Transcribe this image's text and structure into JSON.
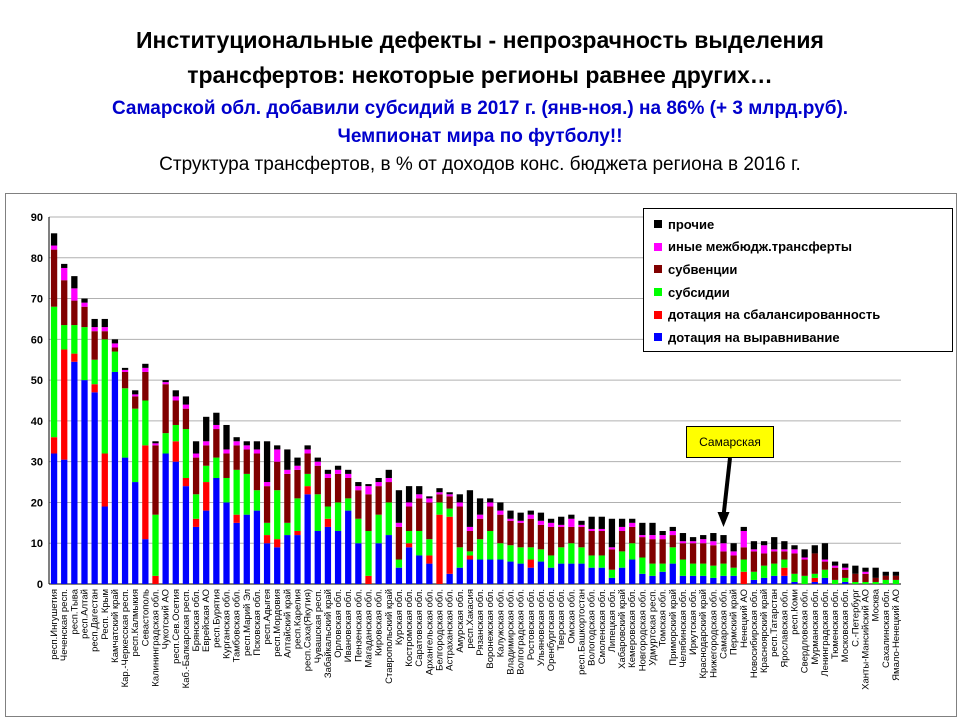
{
  "header": {
    "line1": "Институциональные дефекты - непрозрачность выделения",
    "line2": "трансфертов: некоторые регионы равнее других…",
    "line3": "Самарской обл. добавили субсидий в 2017 г. (янв-ноя.) на 86% (+ 3 млрд.руб).",
    "line4": "Чемпионат мира по футболу!!",
    "line5": "Структура трансфертов, в % от доходов конс. бюджета региона в 2016 г."
  },
  "callout": {
    "label": "Самарская"
  },
  "colors": {
    "прочие": "#000000",
    "иные межбюдж.трансферты": "#ff00ff",
    "субвенции": "#800000",
    "субсидии": "#00ff00",
    "дотация на сбалансированность": "#ff0000",
    "дотация на выравнивание": "#0000ff"
  },
  "chart_data": {
    "type": "bar",
    "stacked": true,
    "ylim": [
      0,
      90
    ],
    "yticks": [
      0,
      10,
      20,
      30,
      40,
      50,
      60,
      70,
      80,
      90
    ],
    "grid": true,
    "legend_position": "top-right",
    "legend": [
      "прочие",
      "иные межбюдж.трансферты",
      "субвенции",
      "субсидии",
      "дотация на сбалансированность",
      "дотация на выравнивание"
    ],
    "categories": [
      "респ.Ингушетия",
      "Чеченская респ.",
      "респ.Тыва",
      "респ.Алтай",
      "респ.Дагестан",
      "Респ. Крым",
      "Камчатский край",
      "Кар.-Черкесская респ.",
      "респ.Калмыкия",
      "Севастополь",
      "Калининградская обл.",
      "Чукотский АО",
      "респ.Сев.Осетия",
      "Каб.-Балкарская респ.",
      "Брянская обл.",
      "Еврейская АО",
      "респ.Бурятия",
      "Курганская обл.",
      "Тамбовская обл.",
      "респ.Марий Эл",
      "Псковская обл.",
      "респ.Адыгея",
      "респ.Мордовия",
      "Алтайский край",
      "респ.Карелия",
      "респ.Саха(Якутия)",
      "Чувашская респ.",
      "Забайкальский край",
      "Орловская обл.",
      "Ивановская обл.",
      "Пензенская обл.",
      "Магаданская обл.",
      "Кировская обл.",
      "Ставропольский край",
      "Курская обл.",
      "Костромская обл.",
      "Саратовская обл.",
      "Архангельская обл.",
      "Белгородская обл.",
      "Астраханская обл.",
      "Амурская обл.",
      "респ.Хакасия",
      "Рязанская обл.",
      "Воронежская обл.",
      "Калужская обл.",
      "Владимирская обл.",
      "Волгоградская обл.",
      "Ростовская обл.",
      "Ульяновская обл.",
      "Оренбургская обл.",
      "Тверская обл.",
      "Омская обл.",
      "респ.Башкортостан",
      "Вологодская обл.",
      "Смоленская обл.",
      "Липецкая обл.",
      "Хабаровский край",
      "Кемеровская обл.",
      "Новгородская обл.",
      "Удмуртская респ.",
      "Томская обл.",
      "Приморский край",
      "Челябинская обл.",
      "Иркутская обл.",
      "Краснодарский край",
      "Нижегородская обл.",
      "Самарская обл.",
      "Пермский край",
      "Ненецкий АО",
      "Новосибирская обл.",
      "Красноярский край",
      "респ.Татарстан",
      "Ярославская обл.",
      "респ.Коми",
      "Свердловская обл.",
      "Мурманская обл.",
      "Ленинградская обл.",
      "Тюменская обл.",
      "Московская обл.",
      "С.-Петербург",
      "Ханты-Мансийский АО",
      "Москва",
      "Сахалинская обл.",
      "Ямало-Ненецкий АО"
    ],
    "series": [
      {
        "name": "дотация на выравнивание",
        "values": [
          32,
          30.5,
          54.5,
          50,
          47,
          19,
          52,
          31,
          25,
          11,
          0,
          32,
          30,
          24,
          14,
          18,
          26,
          20,
          15,
          17,
          18,
          10,
          9,
          12,
          12,
          22,
          13,
          14,
          13,
          18,
          10,
          0,
          10,
          12,
          4,
          9,
          7,
          5,
          0,
          2.5,
          4,
          6,
          6,
          6,
          6,
          5.5,
          5,
          4,
          5.5,
          4,
          5,
          5,
          5,
          4,
          4,
          1.5,
          4,
          6,
          2.5,
          2,
          3,
          5,
          2,
          2,
          2,
          1.5,
          2,
          2,
          0,
          1,
          1.5,
          2,
          2,
          0.5,
          0,
          0.5,
          1.5,
          0,
          0.5,
          0,
          0,
          0,
          0,
          0
        ]
      },
      {
        "name": "дотация на сбалансированность",
        "values": [
          4,
          27,
          2,
          0,
          2,
          13,
          0,
          0,
          0,
          23,
          2,
          0,
          5,
          2,
          2,
          7,
          0,
          0,
          2,
          0,
          0,
          2,
          2,
          0,
          1,
          2,
          0,
          2,
          0,
          0,
          0,
          2,
          0,
          0,
          0,
          1,
          0,
          2,
          17,
          14,
          0,
          1,
          0,
          0,
          0,
          0,
          0,
          2,
          0,
          0,
          0,
          0,
          0,
          0,
          0,
          0,
          0,
          0,
          0,
          0,
          0,
          0,
          0,
          0,
          0,
          0,
          0,
          0,
          3,
          0,
          0,
          0,
          2,
          0,
          0,
          1,
          0,
          0,
          0,
          0,
          0,
          0,
          0,
          0
        ]
      },
      {
        "name": "субсидии",
        "values": [
          32,
          6,
          7,
          13,
          6,
          28,
          5,
          17,
          18,
          11,
          15,
          5,
          4,
          12,
          6,
          4,
          5,
          6,
          11,
          10,
          5,
          3,
          12,
          3,
          8,
          3,
          9,
          3,
          7,
          3,
          6,
          11,
          7,
          8,
          2,
          3,
          6,
          4,
          3,
          2,
          5,
          1,
          5,
          7,
          4,
          4,
          4,
          3,
          3,
          3,
          4,
          5,
          4,
          3,
          3,
          2,
          4,
          4,
          4,
          3,
          2,
          4,
          4,
          3,
          3,
          3,
          3,
          2,
          3,
          2,
          3,
          3,
          2,
          2,
          2,
          1,
          2,
          1,
          1,
          0.5,
          0.5,
          0.5,
          1,
          1
        ]
      },
      {
        "name": "субвенции",
        "values": [
          14,
          11,
          6,
          5,
          7,
          2,
          1,
          4,
          3,
          7,
          17,
          12,
          6,
          5,
          9,
          5,
          7,
          6,
          6,
          6,
          9,
          9,
          7,
          12,
          7,
          5,
          7,
          7,
          7,
          5,
          7,
          9,
          7,
          5,
          8,
          6,
          8,
          9,
          2,
          3,
          10,
          5,
          5,
          6,
          7,
          6,
          6,
          7,
          6,
          7,
          5,
          4,
          5,
          6,
          6,
          5,
          5,
          4,
          5,
          6,
          6,
          3,
          4,
          5,
          5,
          5,
          3,
          3,
          3,
          5,
          3,
          3,
          2,
          5,
          4,
          5,
          2,
          3,
          2,
          2,
          2,
          1,
          1,
          1
        ]
      },
      {
        "name": "иные межбюдж.трансферты",
        "values": [
          1,
          3,
          3,
          1,
          1,
          1,
          1,
          0.5,
          0.5,
          1,
          0.5,
          0.5,
          1,
          1,
          1,
          1,
          1,
          1,
          1,
          1,
          1,
          1,
          3,
          1,
          1,
          1,
          1,
          1,
          1,
          1,
          1,
          2,
          1,
          1,
          1,
          1,
          1,
          1,
          0.5,
          0.5,
          1,
          1,
          1,
          1,
          1,
          0.5,
          0.5,
          1,
          1,
          1,
          0.5,
          2,
          0.5,
          0.5,
          0.5,
          0.5,
          1,
          1,
          0.5,
          1,
          1,
          1,
          0.5,
          0.5,
          1,
          1,
          2,
          1,
          4,
          0.5,
          2,
          0.5,
          0.5,
          1,
          0.5,
          0,
          0.5,
          0.5,
          0.5,
          0,
          0.5,
          0,
          0,
          0
        ]
      },
      {
        "name": "прочие",
        "values": [
          3,
          1,
          3,
          1,
          2,
          2,
          1,
          0.5,
          1,
          1,
          0.5,
          0.5,
          1.5,
          2,
          3,
          6,
          3,
          6,
          1,
          1,
          2,
          10,
          1,
          5,
          2,
          1,
          1,
          1,
          1,
          1,
          1,
          0.5,
          1,
          2,
          8,
          4,
          2,
          0.5,
          1,
          0.5,
          2,
          9,
          4,
          1,
          2,
          2,
          2,
          1,
          2,
          1,
          2,
          1,
          1,
          3,
          3,
          7,
          2,
          1,
          3,
          3,
          1,
          1,
          2,
          1,
          1,
          2,
          2,
          2,
          1,
          2,
          1,
          3,
          2,
          1,
          2,
          2,
          4,
          1,
          1,
          2,
          1,
          2.5,
          1,
          1
        ]
      }
    ]
  }
}
